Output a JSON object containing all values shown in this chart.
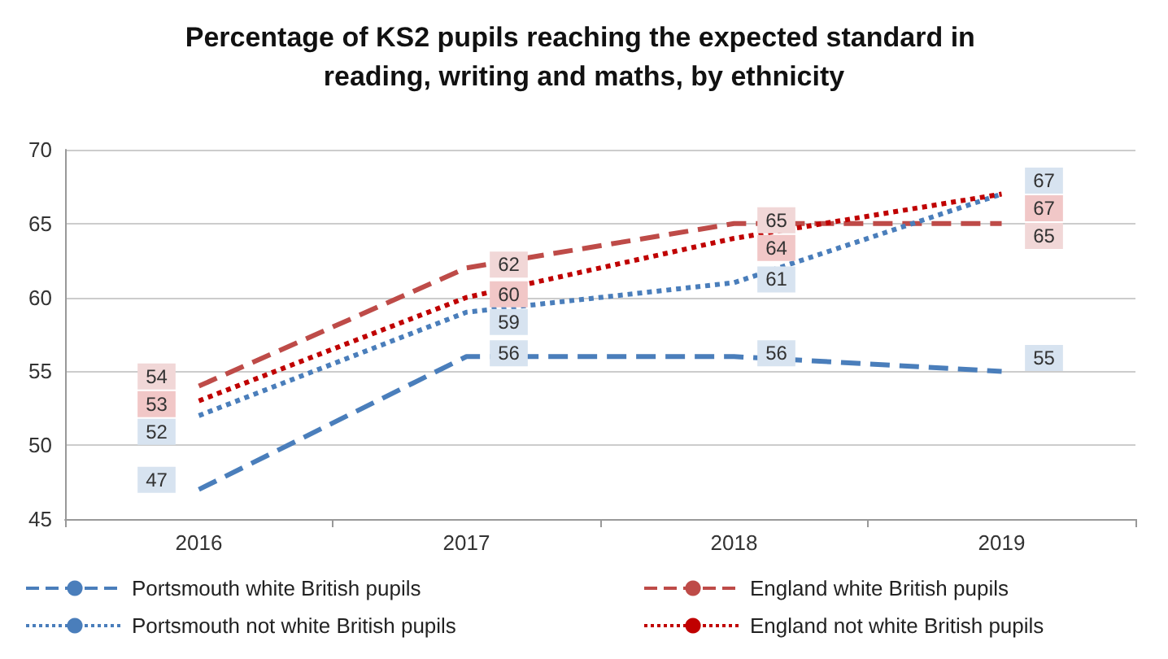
{
  "chart_data": {
    "type": "line",
    "title": "Percentage of KS2 pupils reaching the expected standard in reading, writing and maths, by ethnicity",
    "categories": [
      "2016",
      "2017",
      "2018",
      "2019"
    ],
    "series": [
      {
        "name": "Portsmouth white British pupils",
        "color": "#4a7ebb",
        "line_style": "dashed",
        "values": [
          47,
          56,
          56,
          55
        ]
      },
      {
        "name": "England white British pupils",
        "color": "#be4b48",
        "line_style": "dashed",
        "values": [
          54,
          62,
          65,
          65
        ]
      },
      {
        "name": "Portsmouth not white British pupils",
        "color": "#4a7ebb",
        "line_style": "dotted",
        "values": [
          52,
          59,
          61,
          67
        ]
      },
      {
        "name": "England not white British pupils",
        "color": "#c00000",
        "line_style": "dotted",
        "values": [
          53,
          60,
          64,
          67
        ]
      }
    ],
    "ylim": [
      45,
      70
    ],
    "yticks": [
      45,
      50,
      55,
      60,
      65,
      70
    ],
    "grid": "y",
    "legend": "bottom",
    "marker": "none",
    "data_labels": true
  }
}
